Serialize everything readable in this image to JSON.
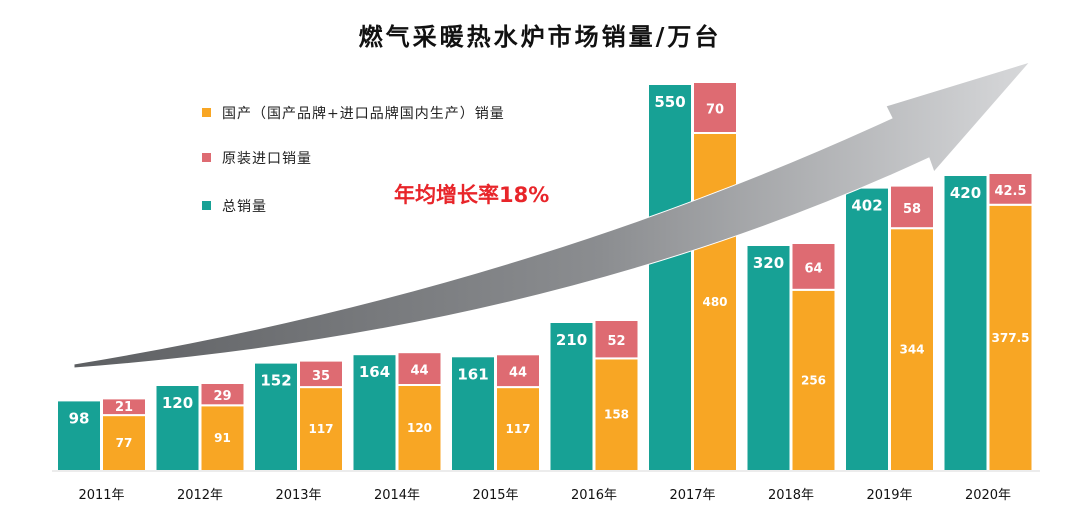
{
  "chart_data": {
    "type": "bar",
    "title": "燃气采暖热水炉市场销量/万台",
    "categories": [
      "2011年",
      "2012年",
      "2013年",
      "2014年",
      "2015年",
      "2016年",
      "2017年",
      "2018年",
      "2019年",
      "2020年"
    ],
    "series": [
      {
        "name": "总销量",
        "values": [
          98,
          120,
          152,
          164,
          161,
          210,
          550,
          320,
          402,
          420
        ]
      },
      {
        "name": "国产（国产品牌+进口品牌国内生产）销量",
        "values": [
          77,
          91,
          117,
          120,
          117,
          158,
          480,
          256,
          344,
          377.5
        ]
      },
      {
        "name": "原装进口销量",
        "values": [
          21,
          29,
          35,
          44,
          44,
          52,
          70,
          64,
          58,
          42.5
        ]
      }
    ],
    "stacked_series": [
      "国产（国产品牌+进口品牌国内生产）销量",
      "原装进口销量"
    ],
    "annotation": "年均增长率18%",
    "legend_position": "top-left",
    "grid": false,
    "colors": {
      "total": "#17a195",
      "domestic": "#f8a624",
      "import": "#de6b72",
      "annotation": "#e8252a",
      "arrow_dark": "#5d5f62",
      "arrow_light": "#d7d8da",
      "axis": "#e5e5e5"
    }
  }
}
